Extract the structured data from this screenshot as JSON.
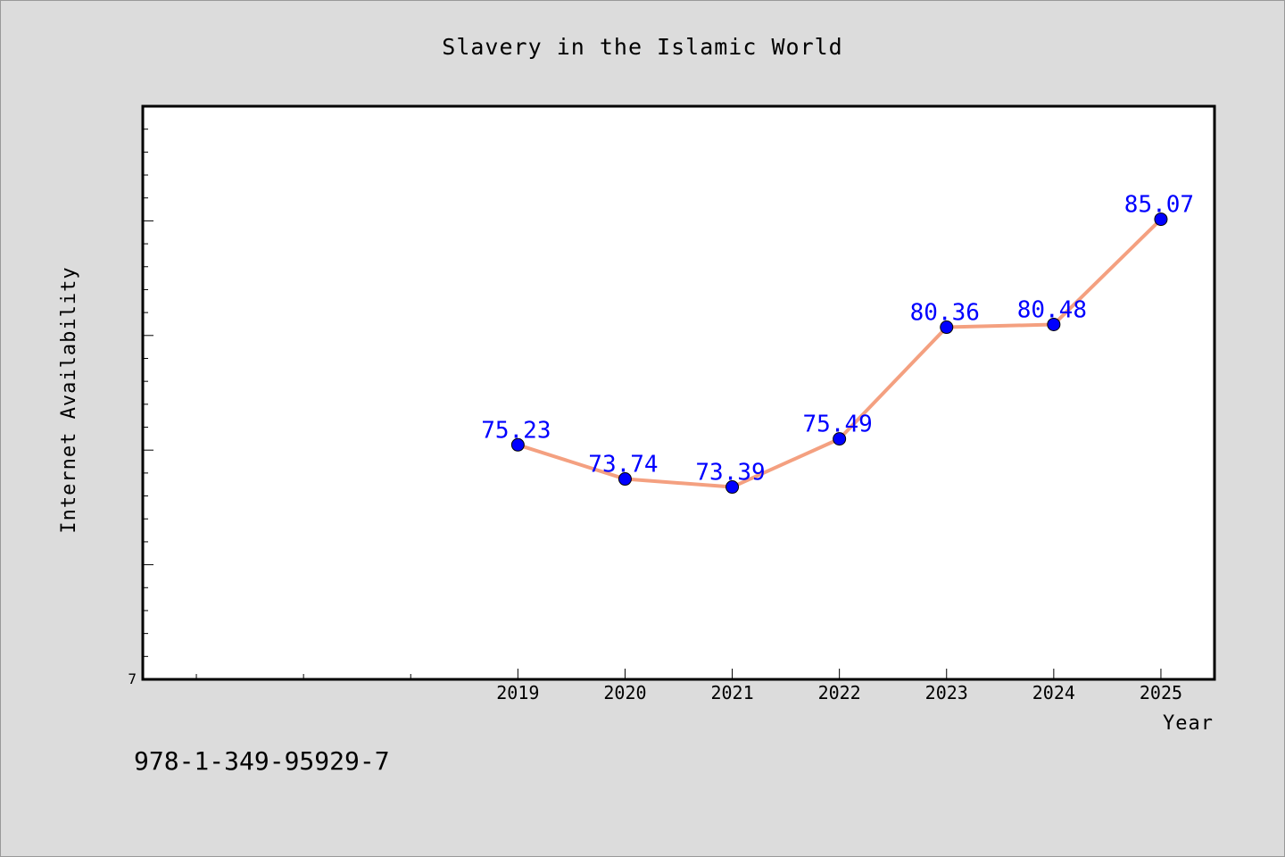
{
  "chart_data": {
    "type": "line",
    "title": "Slavery in the Islamic World",
    "xlabel": "Year",
    "ylabel": "Internet Availability",
    "x": [
      "2019",
      "2020",
      "2021",
      "2022",
      "2023",
      "2024",
      "2025"
    ],
    "series": [
      {
        "values": [
          75.23,
          73.74,
          73.39,
          75.49,
          80.36,
          80.48,
          85.07
        ],
        "labels": [
          "75.23",
          "73.74",
          "73.39",
          "75.49",
          "80.36",
          "80.48",
          "85.07"
        ]
      }
    ],
    "ylim": [
      65,
      90
    ],
    "xlim": [
      2015.5,
      2025.5
    ],
    "y_tick_label": "7",
    "grid": false,
    "legend": "none",
    "line_color": "#f4a080",
    "marker_color": "#0000ff"
  },
  "footer": {
    "isbn": "978-1-349-95929-7"
  }
}
